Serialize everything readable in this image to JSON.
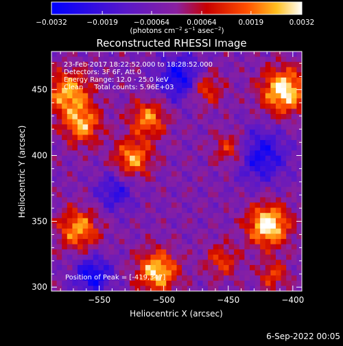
{
  "chart_data": {
    "type": "heatmap",
    "title": "Reconstructed RHESSI Image",
    "xlabel": "Heliocentric X (arcsec)",
    "ylabel": "Heliocentric Y (arcsec)",
    "xlim": [
      -587,
      -393
    ],
    "ylim": [
      297,
      479
    ],
    "x_ticks": [
      -550,
      -500,
      -450,
      -400
    ],
    "x_tick_labels": [
      "−550",
      "−500",
      "−450",
      "−400"
    ],
    "y_ticks": [
      300,
      350,
      400,
      450
    ],
    "y_tick_labels": [
      "300",
      "350",
      "400",
      "450"
    ],
    "colorbar": {
      "range": [
        -0.0032,
        0.0032
      ],
      "ticks": [
        -0.0032,
        -0.0019,
        -0.00064,
        0.00064,
        0.0019,
        0.0032
      ],
      "tick_labels": [
        "−0.0032",
        "−0.0019",
        "−0.00064",
        "0.00064",
        "0.0019",
        "0.0032"
      ],
      "unit_parts": [
        "(photons cm",
        "−2",
        " s",
        "−1",
        " asec",
        "−2",
        ")"
      ],
      "stops": [
        {
          "v": 0.0,
          "color": "#0000ff"
        },
        {
          "v": 0.3,
          "color": "#5a18c8"
        },
        {
          "v": 0.5,
          "color": "#8a20a0"
        },
        {
          "v": 0.62,
          "color": "#c80000"
        },
        {
          "v": 0.78,
          "color": "#ff5000"
        },
        {
          "v": 0.9,
          "color": "#ffc020"
        },
        {
          "v": 1.0,
          "color": "#ffffff"
        }
      ]
    },
    "annotations": [
      "23-Feb-2017 18:22:52.000 to 18:28:52.000",
      "Detectors: 3F 6F, Att 0",
      "Energy Range: 12.0 - 25.0 keV",
      "Clean     Total counts: 5.96E+03"
    ],
    "peak_label": "Position of Peak = [-419,347]",
    "sources": [
      {
        "x": -419,
        "y": 347,
        "amp": 1.0,
        "sigma": 11
      },
      {
        "x": -407,
        "y": 449,
        "amp": 0.95,
        "sigma": 12
      },
      {
        "x": -505,
        "y": 312,
        "amp": 0.85,
        "sigma": 11
      },
      {
        "x": -574,
        "y": 447,
        "amp": 0.75,
        "sigma": 12
      },
      {
        "x": -563,
        "y": 423,
        "amp": 0.7,
        "sigma": 10
      },
      {
        "x": -524,
        "y": 398,
        "amp": 0.7,
        "sigma": 10
      },
      {
        "x": -512,
        "y": 428,
        "amp": 0.65,
        "sigma": 10
      },
      {
        "x": -566,
        "y": 344,
        "amp": 0.7,
        "sigma": 11
      },
      {
        "x": -468,
        "y": 451,
        "amp": 0.55,
        "sigma": 9
      },
      {
        "x": -448,
        "y": 405,
        "amp": 0.5,
        "sigma": 9
      },
      {
        "x": -455,
        "y": 320,
        "amp": 0.45,
        "sigma": 9
      },
      {
        "x": -415,
        "y": 309,
        "amp": 0.45,
        "sigma": 8
      }
    ],
    "dark_regions": [
      {
        "x": -487,
        "y": 459,
        "amp": 0.5,
        "sigma": 12
      },
      {
        "x": -425,
        "y": 400,
        "amp": 0.45,
        "sigma": 14
      },
      {
        "x": -555,
        "y": 309,
        "amp": 0.5,
        "sigma": 10
      },
      {
        "x": -538,
        "y": 372,
        "amp": 0.35,
        "sigma": 10
      }
    ]
  },
  "footer": {
    "date": "6-Sep-2022 00:05"
  }
}
